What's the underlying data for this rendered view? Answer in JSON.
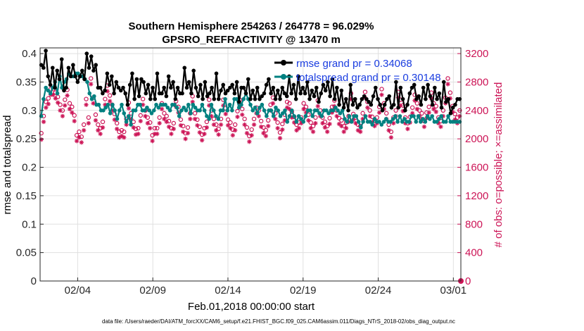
{
  "chart_data": {
    "type": "line",
    "title": "Southern Hemisphere 254263 / 264778 = 96.029%",
    "subtitle": "GPSRO_REFRACTIVITY @ 13470 m",
    "xlabel": "Feb.01,2018 00:00:00 start",
    "ylabel": "rmse and totalspread",
    "y2label": "# of obs: o=possible; ×=assimilated",
    "footer": "data file: /Users/raeder/DAI/ATM_forcXX/CAM6_setup/f.e21.FHIST_BGC.f09_025.CAM6assim.011/Diags_NTrS_2018-02/obs_diag_output.nc",
    "xlim": [
      1,
      29
    ],
    "ylim": [
      0,
      0.41
    ],
    "y2lim": [
      0,
      3280
    ],
    "x_ticks": [
      3.5,
      8.5,
      13.5,
      18.5,
      23.5,
      28.5
    ],
    "x_tick_labels": [
      "02/04",
      "02/09",
      "02/14",
      "02/19",
      "02/24",
      "03/01"
    ],
    "y_ticks": [
      0,
      0.05,
      0.1,
      0.15,
      0.2,
      0.25,
      0.3,
      0.35,
      0.4
    ],
    "y_tick_labels": [
      "0",
      "0.05",
      "0.1",
      "0.15",
      "0.2",
      "0.25",
      "0.3",
      "0.35",
      "0.4"
    ],
    "y2_ticks": [
      0,
      400,
      800,
      1200,
      1600,
      2000,
      2400,
      2800,
      3200
    ],
    "y2_tick_labels": [
      "0",
      "400",
      "800",
      "1200",
      "1600",
      "2000",
      "2400",
      "2800",
      "3200"
    ],
    "grid": true,
    "legend_position": "top-right",
    "colors": {
      "rmse": "#000000",
      "spread": "#008080",
      "obs": "#cc1456"
    },
    "series": [
      {
        "name": "rmse grand pr = 0.34068",
        "axis": "left",
        "marker": "dot",
        "values": [
          0.38,
          0.375,
          0.405,
          0.36,
          0.345,
          0.375,
          0.34,
          0.37,
          0.355,
          0.39,
          0.335,
          0.34,
          0.375,
          0.36,
          0.38,
          0.36,
          0.35,
          0.36,
          0.37,
          0.355,
          0.4,
          0.375,
          0.395,
          0.37,
          0.38,
          0.34,
          0.34,
          0.33,
          0.335,
          0.365,
          0.345,
          0.36,
          0.33,
          0.35,
          0.34,
          0.335,
          0.34,
          0.33,
          0.31,
          0.345,
          0.365,
          0.32,
          0.355,
          0.325,
          0.355,
          0.35,
          0.33,
          0.345,
          0.32,
          0.34,
          0.32,
          0.365,
          0.33,
          0.33,
          0.34,
          0.325,
          0.36,
          0.34,
          0.35,
          0.32,
          0.34,
          0.33,
          0.33,
          0.375,
          0.34,
          0.35,
          0.33,
          0.37,
          0.34,
          0.325,
          0.345,
          0.32,
          0.35,
          0.325,
          0.33,
          0.34,
          0.32,
          0.365,
          0.32,
          0.335,
          0.345,
          0.33,
          0.335,
          0.34,
          0.345,
          0.33,
          0.35,
          0.315,
          0.34,
          0.34,
          0.33,
          0.355,
          0.32,
          0.335,
          0.32,
          0.34,
          0.32,
          0.325,
          0.33,
          0.345,
          0.355,
          0.33,
          0.34,
          0.32,
          0.335,
          0.32,
          0.34,
          0.33,
          0.325,
          0.36,
          0.33,
          0.345,
          0.32,
          0.36,
          0.33,
          0.34,
          0.33,
          0.35,
          0.32,
          0.335,
          0.325,
          0.34,
          0.315,
          0.33,
          0.345,
          0.335,
          0.35,
          0.325,
          0.355,
          0.32,
          0.34,
          0.31,
          0.335,
          0.305,
          0.32,
          0.3,
          0.345,
          0.31,
          0.32,
          0.305,
          0.31,
          0.32,
          0.325,
          0.32,
          0.315,
          0.31,
          0.325,
          0.34,
          0.32,
          0.31,
          0.3,
          0.31,
          0.32,
          0.325,
          0.305,
          0.31,
          0.35,
          0.305,
          0.34,
          0.32,
          0.3,
          0.31,
          0.33,
          0.34,
          0.345,
          0.32,
          0.325,
          0.31,
          0.34,
          0.32,
          0.345,
          0.325,
          0.31,
          0.34,
          0.32,
          0.33,
          0.305,
          0.35,
          0.315,
          0.32,
          0.295,
          0.305,
          0.31,
          0.32,
          0.32
        ]
      },
      {
        "name": "totalspread grand pr = 0.30148",
        "axis": "left",
        "marker": "dot",
        "values": [
          0.29,
          0.32,
          0.34,
          0.335,
          0.33,
          0.34,
          0.35,
          0.33,
          0.36,
          0.34,
          0.35,
          0.355,
          0.365,
          0.36,
          0.36,
          0.365,
          0.365,
          0.36,
          0.36,
          0.355,
          0.35,
          0.33,
          0.32,
          0.325,
          0.31,
          0.31,
          0.3,
          0.3,
          0.305,
          0.31,
          0.295,
          0.31,
          0.3,
          0.285,
          0.3,
          0.31,
          0.295,
          0.28,
          0.29,
          0.275,
          0.3,
          0.3,
          0.31,
          0.31,
          0.3,
          0.3,
          0.305,
          0.3,
          0.295,
          0.3,
          0.31,
          0.305,
          0.31,
          0.31,
          0.31,
          0.305,
          0.3,
          0.31,
          0.31,
          0.305,
          0.29,
          0.3,
          0.305,
          0.3,
          0.31,
          0.295,
          0.31,
          0.305,
          0.3,
          0.3,
          0.31,
          0.3,
          0.29,
          0.285,
          0.31,
          0.3,
          0.29,
          0.285,
          0.3,
          0.3,
          0.32,
          0.3,
          0.31,
          0.3,
          0.32,
          0.32,
          0.305,
          0.31,
          0.32,
          0.33,
          0.32,
          0.31,
          0.3,
          0.305,
          0.295,
          0.305,
          0.31,
          0.3,
          0.29,
          0.3,
          0.3,
          0.29,
          0.305,
          0.3,
          0.29,
          0.295,
          0.3,
          0.28,
          0.29,
          0.3,
          0.29,
          0.28,
          0.29,
          0.285,
          0.28,
          0.29,
          0.3,
          0.3,
          0.29,
          0.3,
          0.3,
          0.295,
          0.29,
          0.3,
          0.3,
          0.295,
          0.3,
          0.3,
          0.305,
          0.3,
          0.295,
          0.3,
          0.285,
          0.28,
          0.29,
          0.28,
          0.29,
          0.29,
          0.28,
          0.27,
          0.28,
          0.29,
          0.28,
          0.28,
          0.275,
          0.285,
          0.28,
          0.28,
          0.275,
          0.28,
          0.285,
          0.28,
          0.28,
          0.285,
          0.29,
          0.28,
          0.29,
          0.28,
          0.285,
          0.28,
          0.28,
          0.29,
          0.29,
          0.28,
          0.29,
          0.28,
          0.285,
          0.28,
          0.29,
          0.285,
          0.29,
          0.28,
          0.28,
          0.285,
          0.29,
          0.28,
          0.28,
          0.29,
          0.28,
          0.28,
          0.28,
          0.28,
          0.28
        ]
      },
      {
        "name": "possible",
        "axis": "right",
        "marker": "circle",
        "values": [
          2080,
          2320,
          2520,
          2570,
          2700,
          2700,
          2650,
          2590,
          2480,
          2400,
          2550,
          2690,
          2500,
          2450,
          2330,
          2050,
          2100,
          2030,
          2200,
          2560,
          2300,
          2850,
          2580,
          2340,
          2200,
          2150,
          2240,
          2560,
          2750,
          2610,
          2480,
          2350,
          2220,
          2100,
          2120,
          2100,
          2280,
          2510,
          2360,
          2240,
          2140,
          2150,
          2330,
          2560,
          2400,
          2300,
          2230,
          2050,
          2150,
          2150,
          2300,
          2500,
          2360,
          2320,
          2250,
          2150,
          2220,
          2530,
          2450,
          2270,
          2180,
          2080,
          2160,
          2360,
          2600,
          2360,
          2270,
          2170,
          2060,
          2150,
          2240,
          2550,
          2400,
          2280,
          2200,
          2140,
          2280,
          2550,
          2430,
          2270,
          2230,
          2130,
          2200,
          2390,
          2550,
          2420,
          2280,
          2160,
          2040,
          2130,
          2280,
          2440,
          2400,
          2250,
          2160,
          2120,
          2260,
          2480,
          2580,
          2360,
          2230,
          2090,
          2210,
          2340,
          2520,
          2500,
          2380,
          2310,
          2200,
          2230,
          2300,
          2500,
          2450,
          2340,
          2230,
          2180,
          2300,
          2540,
          2400,
          2300,
          2240,
          2180,
          2290,
          2450,
          2540,
          2400,
          2290,
          2260,
          2180,
          2230,
          2320,
          2640,
          2350,
          2300,
          2200,
          2180,
          2360,
          2660,
          2520,
          2400,
          2310,
          2260,
          2300,
          2450,
          2700,
          2500,
          2360,
          2200,
          2100,
          2300,
          2400,
          2660,
          2550,
          2470,
          2300,
          2220,
          2310,
          2440,
          2620,
          2500,
          2400,
          2360,
          2250,
          2370,
          2450,
          2650,
          2500,
          2460,
          2300,
          2250,
          2400,
          2580,
          2850,
          2650,
          2460,
          2350,
          2300,
          2400
        ]
      },
      {
        "name": "assimilated",
        "axis": "right",
        "marker": "star",
        "values": [
          1990,
          2240,
          2440,
          2490,
          2620,
          2620,
          2570,
          2510,
          2400,
          2320,
          2470,
          2610,
          2420,
          2370,
          2250,
          1970,
          2020,
          1950,
          2120,
          2480,
          2220,
          2770,
          2500,
          2260,
          2120,
          2070,
          2160,
          2480,
          2670,
          2530,
          2400,
          2270,
          2140,
          2020,
          2040,
          2020,
          2200,
          2430,
          2280,
          2160,
          2060,
          2070,
          2250,
          2480,
          2320,
          2220,
          2150,
          1970,
          2070,
          2070,
          2220,
          2420,
          2280,
          2240,
          2170,
          2070,
          2140,
          2450,
          2370,
          2190,
          2100,
          2000,
          2080,
          2280,
          2520,
          2280,
          2190,
          2090,
          1980,
          2070,
          2160,
          2470,
          2320,
          2200,
          2120,
          2060,
          2200,
          2470,
          2350,
          2190,
          2150,
          2050,
          2120,
          2310,
          2470,
          2340,
          2200,
          2080,
          1960,
          2050,
          2200,
          2360,
          2320,
          2170,
          2080,
          2040,
          2180,
          2400,
          2500,
          2280,
          2150,
          2010,
          2130,
          2260,
          2440,
          2420,
          2300,
          2230,
          2120,
          2150,
          2220,
          2420,
          2370,
          2260,
          2150,
          2100,
          2220,
          2460,
          2320,
          2220,
          2160,
          2100,
          2210,
          2370,
          2460,
          2320,
          2210,
          2180,
          2100,
          2150,
          2240,
          2560,
          2270,
          2220,
          2120,
          2100,
          2280,
          2580,
          2440,
          2320,
          2230,
          2180,
          2220,
          2370,
          2620,
          2420,
          2280,
          2120,
          2020,
          2220,
          2320,
          2580,
          2470,
          2390,
          2220,
          2140,
          2230,
          2360,
          2540,
          2420,
          2320,
          2280,
          2170,
          2290,
          2370,
          2570,
          2420,
          2380,
          2220,
          2170,
          2320,
          2500,
          2770,
          2570,
          2380,
          2270,
          2220,
          2320
        ]
      }
    ],
    "end_value_right": 0
  }
}
